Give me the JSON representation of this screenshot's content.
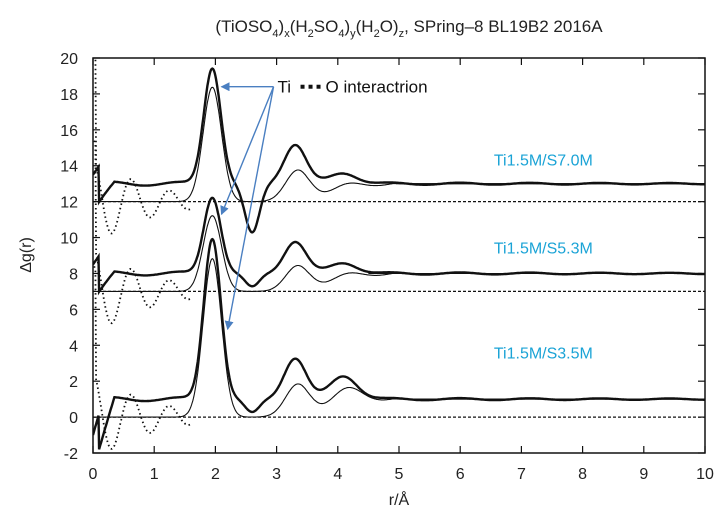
{
  "chart_data": {
    "type": "line",
    "title": {
      "parts": [
        {
          "t": "(TiOSO",
          "s": "normal"
        },
        {
          "t": "4",
          "s": "sub"
        },
        {
          "t": ")",
          "s": "normal"
        },
        {
          "t": "x",
          "s": "sub"
        },
        {
          "t": "(H",
          "s": "normal"
        },
        {
          "t": "2",
          "s": "sub"
        },
        {
          "t": "SO",
          "s": "normal"
        },
        {
          "t": "4",
          "s": "sub"
        },
        {
          "t": ")",
          "s": "normal"
        },
        {
          "t": "y",
          "s": "sub"
        },
        {
          "t": "(H",
          "s": "normal"
        },
        {
          "t": "2",
          "s": "sub"
        },
        {
          "t": "O)",
          "s": "normal"
        },
        {
          "t": "z",
          "s": "sub"
        },
        {
          "t": ", SPring–8 BL19B2 2016A",
          "s": "normal"
        }
      ]
    },
    "xlabel": "r/Å",
    "ylabel": "Δg(r)",
    "xlim": [
      0,
      10
    ],
    "ylim": [
      -2,
      20
    ],
    "x_ticks": [
      0,
      1,
      2,
      3,
      4,
      5,
      6,
      7,
      8,
      9,
      10
    ],
    "y_ticks": [
      -2,
      0,
      2,
      4,
      6,
      8,
      10,
      12,
      14,
      16,
      18,
      20
    ],
    "grid": false,
    "colors": {
      "label": "#1aa3d6",
      "arrow": "#4a7fc1",
      "line": "#111111"
    },
    "annotation": {
      "text_before": "Ti",
      "text_after": "O interactrion",
      "arrow_from": [
        2.95,
        18.4
      ],
      "arrow_targets": [
        [
          2.1,
          18.4
        ],
        [
          2.1,
          11.3
        ],
        [
          2.2,
          4.9
        ]
      ]
    },
    "samples": [
      {
        "label": "Ti1.5M/S7.0M",
        "label_pos": [
          6.55,
          14.0
        ],
        "offset": 12,
        "baseline": 13.0,
        "baseline_r": 4.95,
        "peak_amp": 6.5,
        "peak2_amp": 2.2,
        "hump_amp": 0.6
      },
      {
        "label": "Ti1.5M/S5.3M",
        "label_pos": [
          6.55,
          9.1
        ],
        "offset": 7,
        "baseline": 8.0,
        "baseline_r": 4.5,
        "peak_amp": 4.3,
        "peak2_amp": 1.8,
        "hump_amp": 0.6
      },
      {
        "label": "Ti1.5M/S3.5M",
        "label_pos": [
          6.55,
          3.25
        ],
        "offset": 0,
        "baseline": 1.0,
        "baseline_r": 5.1,
        "peak_amp": 9.0,
        "peak2_amp": 2.3,
        "hump_amp": 1.3
      }
    ]
  }
}
